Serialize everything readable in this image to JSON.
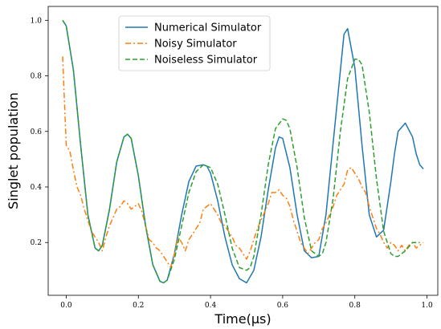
{
  "chart_data": {
    "type": "line",
    "xlabel": "Time(μs)",
    "ylabel": "Singlet population",
    "xlim": [
      -0.05,
      1.03
    ],
    "ylim": [
      0.01,
      1.05
    ],
    "xticks": [
      {
        "value": 0.0,
        "label": "0.0"
      },
      {
        "value": 0.2,
        "label": "0.2"
      },
      {
        "value": 0.4,
        "label": "0.4"
      },
      {
        "value": 0.6,
        "label": "0.6"
      },
      {
        "value": 0.8,
        "label": "0.8"
      },
      {
        "value": 1.0,
        "label": "1.0"
      }
    ],
    "yticks": [
      {
        "value": 0.2,
        "label": "0.2"
      },
      {
        "value": 0.4,
        "label": "0.4"
      },
      {
        "value": 0.6,
        "label": "0.6"
      },
      {
        "value": 0.8,
        "label": "0.8"
      },
      {
        "value": 1.0,
        "label": "1.0"
      }
    ],
    "grid": false,
    "legend": "top-center",
    "series": [
      {
        "name": "Numerical Simulator",
        "color": "#1f77b4",
        "dash": "solid",
        "x": [
          -0.01,
          0.0,
          0.02,
          0.04,
          0.06,
          0.08,
          0.09,
          0.1,
          0.12,
          0.14,
          0.16,
          0.17,
          0.18,
          0.2,
          0.22,
          0.24,
          0.26,
          0.27,
          0.28,
          0.3,
          0.32,
          0.34,
          0.36,
          0.38,
          0.39,
          0.4,
          0.42,
          0.44,
          0.46,
          0.48,
          0.5,
          0.5,
          0.52,
          0.54,
          0.56,
          0.58,
          0.59,
          0.6,
          0.62,
          0.64,
          0.66,
          0.68,
          0.7,
          0.7,
          0.72,
          0.74,
          0.76,
          0.77,
          0.78,
          0.8,
          0.82,
          0.84,
          0.86,
          0.88,
          0.9,
          0.91,
          0.92,
          0.94,
          0.96,
          0.97,
          0.98,
          0.99
        ],
        "y": [
          1.0,
          0.98,
          0.82,
          0.55,
          0.3,
          0.18,
          0.17,
          0.19,
          0.32,
          0.49,
          0.58,
          0.59,
          0.575,
          0.44,
          0.26,
          0.12,
          0.06,
          0.055,
          0.065,
          0.16,
          0.3,
          0.42,
          0.475,
          0.48,
          0.475,
          0.45,
          0.35,
          0.22,
          0.12,
          0.07,
          0.055,
          0.055,
          0.1,
          0.22,
          0.39,
          0.54,
          0.58,
          0.575,
          0.47,
          0.3,
          0.17,
          0.145,
          0.15,
          0.15,
          0.3,
          0.56,
          0.82,
          0.95,
          0.97,
          0.83,
          0.55,
          0.3,
          0.22,
          0.245,
          0.42,
          0.52,
          0.6,
          0.63,
          0.58,
          0.52,
          0.48,
          0.465
        ]
      },
      {
        "name": "Noisy Simulator",
        "color": "#ff7f0e",
        "dash": "dashdot",
        "x": [
          -0.01,
          0.0,
          0.01,
          0.02,
          0.03,
          0.04,
          0.05,
          0.06,
          0.07,
          0.08,
          0.09,
          0.1,
          0.11,
          0.12,
          0.13,
          0.14,
          0.15,
          0.16,
          0.17,
          0.18,
          0.19,
          0.2,
          0.21,
          0.22,
          0.23,
          0.24,
          0.25,
          0.26,
          0.27,
          0.28,
          0.29,
          0.3,
          0.31,
          0.32,
          0.33,
          0.34,
          0.35,
          0.36,
          0.37,
          0.38,
          0.39,
          0.4,
          0.41,
          0.42,
          0.43,
          0.44,
          0.45,
          0.46,
          0.47,
          0.48,
          0.49,
          0.5,
          0.51,
          0.52,
          0.53,
          0.54,
          0.55,
          0.56,
          0.57,
          0.58,
          0.59,
          0.6,
          0.61,
          0.62,
          0.63,
          0.64,
          0.65,
          0.66,
          0.67,
          0.68,
          0.69,
          0.7,
          0.71,
          0.72,
          0.73,
          0.74,
          0.75,
          0.76,
          0.77,
          0.78,
          0.79,
          0.8,
          0.81,
          0.82,
          0.83,
          0.84,
          0.85,
          0.86,
          0.87,
          0.88,
          0.89,
          0.9,
          0.91,
          0.92,
          0.93,
          0.94,
          0.95,
          0.96,
          0.97,
          0.98,
          0.99
        ],
        "y": [
          0.87,
          0.55,
          0.53,
          0.46,
          0.4,
          0.37,
          0.32,
          0.28,
          0.24,
          0.22,
          0.2,
          0.17,
          0.22,
          0.26,
          0.29,
          0.32,
          0.33,
          0.35,
          0.34,
          0.32,
          0.33,
          0.34,
          0.31,
          0.26,
          0.21,
          0.2,
          0.18,
          0.17,
          0.15,
          0.13,
          0.11,
          0.16,
          0.22,
          0.2,
          0.17,
          0.21,
          0.23,
          0.25,
          0.27,
          0.32,
          0.33,
          0.34,
          0.32,
          0.3,
          0.27,
          0.26,
          0.24,
          0.22,
          0.19,
          0.18,
          0.16,
          0.14,
          0.17,
          0.21,
          0.25,
          0.28,
          0.31,
          0.34,
          0.38,
          0.38,
          0.39,
          0.37,
          0.36,
          0.33,
          0.28,
          0.24,
          0.2,
          0.18,
          0.16,
          0.18,
          0.2,
          0.21,
          0.25,
          0.27,
          0.3,
          0.33,
          0.37,
          0.39,
          0.41,
          0.46,
          0.47,
          0.45,
          0.43,
          0.4,
          0.38,
          0.33,
          0.29,
          0.25,
          0.23,
          0.2,
          0.18,
          0.2,
          0.19,
          0.17,
          0.19,
          0.17,
          0.19,
          0.2,
          0.18,
          0.19,
          0.2
        ]
      },
      {
        "name": "Noiseless Simulator",
        "color": "#2ca02c",
        "dash": "dashed",
        "x": [
          -0.01,
          0.0,
          0.02,
          0.04,
          0.06,
          0.08,
          0.09,
          0.1,
          0.12,
          0.14,
          0.16,
          0.17,
          0.18,
          0.2,
          0.22,
          0.24,
          0.26,
          0.27,
          0.28,
          0.3,
          0.32,
          0.34,
          0.36,
          0.38,
          0.39,
          0.4,
          0.42,
          0.44,
          0.46,
          0.48,
          0.5,
          0.51,
          0.52,
          0.54,
          0.56,
          0.58,
          0.6,
          0.61,
          0.62,
          0.64,
          0.66,
          0.68,
          0.7,
          0.71,
          0.72,
          0.74,
          0.76,
          0.78,
          0.8,
          0.81,
          0.82,
          0.84,
          0.86,
          0.88,
          0.9,
          0.91,
          0.92,
          0.94,
          0.96,
          0.98
        ],
        "y": [
          1.0,
          0.98,
          0.82,
          0.55,
          0.3,
          0.18,
          0.17,
          0.19,
          0.32,
          0.49,
          0.58,
          0.59,
          0.575,
          0.44,
          0.26,
          0.12,
          0.06,
          0.055,
          0.065,
          0.14,
          0.26,
          0.38,
          0.455,
          0.48,
          0.475,
          0.47,
          0.41,
          0.3,
          0.18,
          0.11,
          0.1,
          0.11,
          0.15,
          0.3,
          0.48,
          0.61,
          0.645,
          0.64,
          0.61,
          0.47,
          0.29,
          0.17,
          0.15,
          0.16,
          0.2,
          0.36,
          0.6,
          0.79,
          0.86,
          0.86,
          0.84,
          0.67,
          0.43,
          0.24,
          0.16,
          0.15,
          0.15,
          0.17,
          0.2,
          0.2
        ]
      }
    ]
  }
}
